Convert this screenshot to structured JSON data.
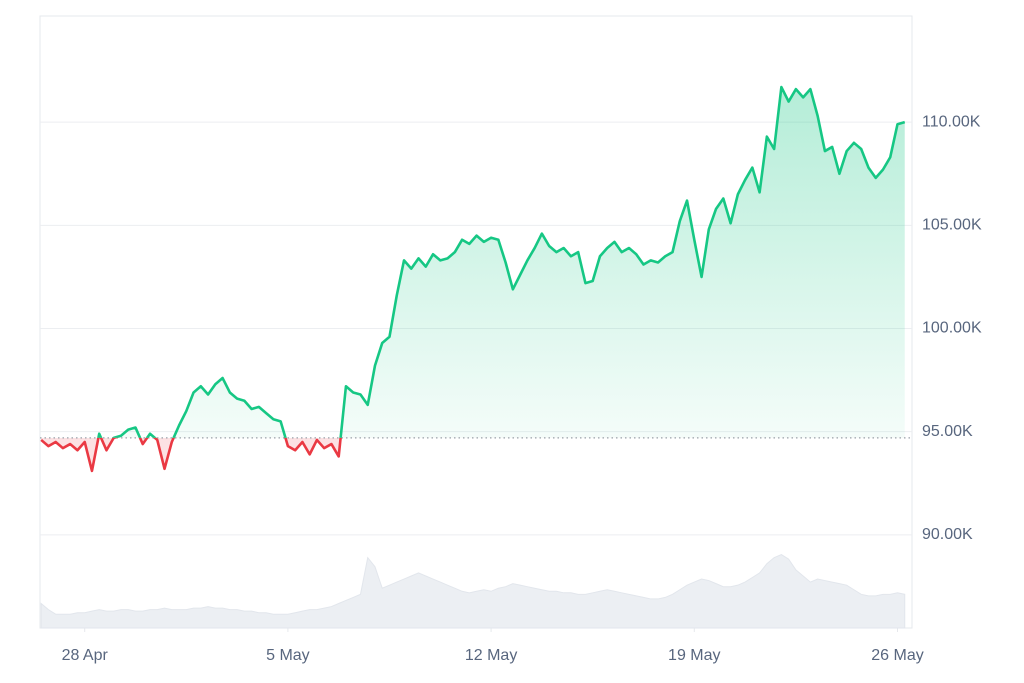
{
  "chart_data": {
    "type": "line",
    "x": [
      116.5,
      116.75,
      117,
      117.25,
      117.5,
      117.75,
      118,
      118.25,
      118.5,
      118.75,
      119,
      119.25,
      119.5,
      119.75,
      120,
      120.25,
      120.5,
      120.75,
      121,
      121.25,
      121.5,
      121.75,
      122,
      122.25,
      122.5,
      122.75,
      123,
      123.25,
      123.5,
      123.75,
      124,
      124.25,
      124.5,
      124.75,
      125,
      125.25,
      125.5,
      125.75,
      126,
      126.25,
      126.5,
      126.75,
      127,
      127.25,
      127.5,
      127.75,
      128,
      128.25,
      128.5,
      128.75,
      129,
      129.25,
      129.5,
      129.75,
      130,
      130.25,
      130.5,
      130.75,
      131,
      131.25,
      131.5,
      131.75,
      132,
      132.25,
      132.5,
      132.75,
      133,
      133.25,
      133.5,
      133.75,
      134,
      134.25,
      134.5,
      134.75,
      135,
      135.25,
      135.5,
      135.75,
      136,
      136.25,
      136.5,
      136.75,
      137,
      137.25,
      137.5,
      137.75,
      138,
      138.25,
      138.5,
      138.75,
      139,
      139.25,
      139.5,
      139.75,
      140,
      140.25,
      140.5,
      140.75,
      141,
      141.25,
      141.5,
      141.75,
      142,
      142.25,
      142.5,
      142.75,
      143,
      143.25,
      143.5,
      143.75,
      144,
      144.25,
      144.5,
      144.75,
      145,
      145.25,
      145.5,
      145.75,
      146,
      146.25
    ],
    "series": [
      {
        "name": "Price",
        "up_color": "#16c784",
        "down_color": "#ea3943",
        "values": [
          94600,
          94300,
          94500,
          94200,
          94400,
          94100,
          94500,
          93100,
          94900,
          94100,
          94700,
          94800,
          95100,
          95200,
          94400,
          94900,
          94600,
          93200,
          94500,
          95300,
          96000,
          96900,
          97200,
          96800,
          97300,
          97600,
          96900,
          96600,
          96500,
          96100,
          96200,
          95900,
          95600,
          95500,
          94300,
          94100,
          94500,
          93900,
          94600,
          94200,
          94400,
          93800,
          97200,
          96900,
          96800,
          96300,
          98200,
          99300,
          99600,
          101600,
          103300,
          102900,
          103400,
          103000,
          103600,
          103300,
          103400,
          103700,
          104300,
          104100,
          104500,
          104200,
          104400,
          104300,
          103200,
          101900,
          102600,
          103300,
          103900,
          104600,
          104000,
          103700,
          103900,
          103500,
          103700,
          102200,
          102300,
          103500,
          103900,
          104200,
          103700,
          103900,
          103600,
          103100,
          103300,
          103200,
          103500,
          103700,
          105200,
          106200,
          104300,
          102500,
          104800,
          105800,
          106300,
          105100,
          106500,
          107200,
          107800,
          106600,
          109300,
          108700,
          111700,
          111000,
          111600,
          111200,
          111600,
          110300,
          108600,
          108800,
          107500,
          108600,
          109000,
          108700,
          107800,
          107300,
          107700,
          108300,
          109900,
          110000
        ]
      },
      {
        "name": "Volume",
        "axis": "y2",
        "color": "#eceff3",
        "values": [
          16,
          12,
          9,
          9,
          9,
          10,
          10,
          11,
          12,
          11,
          11,
          12,
          12,
          11,
          11,
          12,
          12,
          13,
          12,
          12,
          12,
          13,
          13,
          14,
          13,
          13,
          12,
          12,
          11,
          11,
          10,
          10,
          9,
          9,
          9,
          10,
          11,
          12,
          12,
          13,
          14,
          16,
          18,
          20,
          22,
          46,
          40,
          26,
          28,
          30,
          32,
          34,
          36,
          34,
          32,
          30,
          28,
          26,
          24,
          23,
          24,
          25,
          24,
          26,
          27,
          29,
          28,
          27,
          26,
          25,
          24,
          24,
          23,
          23,
          22,
          22,
          23,
          24,
          25,
          24,
          23,
          22,
          21,
          20,
          19,
          19,
          20,
          22,
          25,
          28,
          30,
          32,
          31,
          29,
          27,
          27,
          28,
          30,
          33,
          36,
          42,
          46,
          48,
          45,
          38,
          34,
          30,
          32,
          31,
          30,
          29,
          28,
          25,
          22,
          21,
          21,
          22,
          22,
          23,
          22
        ]
      }
    ],
    "baseline": 94700,
    "xlim": [
      116.46,
      146.5
    ],
    "xticks": [
      {
        "value": 118,
        "label": "28 Apr"
      },
      {
        "value": 125,
        "label": "5 May"
      },
      {
        "value": 132,
        "label": "12 May"
      },
      {
        "value": 139,
        "label": "19 May"
      },
      {
        "value": 146,
        "label": "26 May"
      }
    ],
    "ylim": [
      85485,
      115146
    ],
    "yticks": [
      {
        "value": 90000,
        "label": "90.00K"
      },
      {
        "value": 95000,
        "label": "95.00K"
      },
      {
        "value": 100000,
        "label": "100.00K"
      },
      {
        "value": 105000,
        "label": "105.00K"
      },
      {
        "value": 110000,
        "label": "110.00K"
      }
    ],
    "y2lim": [
      0,
      400
    ],
    "grid": true
  }
}
